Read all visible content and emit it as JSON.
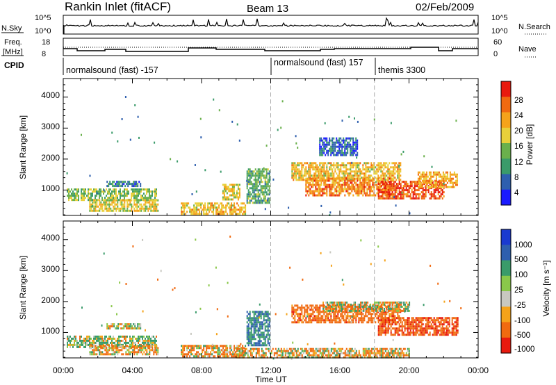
{
  "header": {
    "station": "Rankin Inlet (fitACF)",
    "beam": "Beam 13",
    "date": "02/Feb/2009"
  },
  "strips": {
    "nsky_label": "N.Sky",
    "nsky_ticks": [
      "10^5",
      "10^0"
    ],
    "nsearch_label": "N.Search",
    "nsearch_ticks": [
      "10^5",
      "10^0"
    ],
    "freq_label_1": "Freq.",
    "freq_label_2": "[MHz]",
    "freq_ticks": [
      "18",
      "8"
    ],
    "nave_label": "Nave",
    "nave_ticks": [
      "60",
      "0"
    ],
    "cpid_label": "CPID"
  },
  "cpid_segments": [
    {
      "start_hour": 0,
      "label": "normalsound (fast) -157"
    },
    {
      "start_hour": 12,
      "label": "normalsound (fast) 157"
    },
    {
      "start_hour": 18,
      "label": "themis 3300"
    }
  ],
  "colors": {
    "power": [
      "#1a1aff",
      "#2e5fae",
      "#3a9b6a",
      "#6ab04c",
      "#e8d03a",
      "#f5a31a",
      "#f06a10",
      "#e81a0e"
    ],
    "velocity": [
      "#e81a0e",
      "#f06a10",
      "#f5a31a",
      "#c8c8c0",
      "#8ac84a",
      "#3a9b6a",
      "#2e5fae",
      "#1a3ad0"
    ]
  },
  "chart_data": [
    {
      "type": "heatmap",
      "quantity": "power",
      "ylabel": "Slant Range [km]",
      "yticks": [
        "4000",
        "3000",
        "2000",
        "1000"
      ],
      "ylim": [
        180,
        4600
      ],
      "colorbar_label": "Power [dB]",
      "colorbar_ticks": [
        "28",
        "24",
        "20",
        "16",
        "12",
        "8",
        "4"
      ],
      "colorbar_range": [
        0,
        32
      ],
      "regions": [
        {
          "t": [
            0.2,
            5.4
          ],
          "r": [
            650,
            1050
          ],
          "value": 14
        },
        {
          "t": [
            1.5,
            5.5
          ],
          "r": [
            300,
            700
          ],
          "value": 18
        },
        {
          "t": [
            2.5,
            4.5
          ],
          "r": [
            1150,
            1300
          ],
          "value": 8
        },
        {
          "t": [
            6.8,
            10.5
          ],
          "r": [
            200,
            600
          ],
          "value": 20
        },
        {
          "t": [
            9.2,
            10.2
          ],
          "r": [
            700,
            1200
          ],
          "value": 18
        },
        {
          "t": [
            10.6,
            11.9
          ],
          "r": [
            600,
            1700
          ],
          "value": 12
        },
        {
          "t": [
            13.2,
            19.5
          ],
          "r": [
            1300,
            1900
          ],
          "value": 20
        },
        {
          "t": [
            14.0,
            19.0
          ],
          "r": [
            850,
            1400
          ],
          "value": 24
        },
        {
          "t": [
            18.2,
            22.0
          ],
          "r": [
            700,
            1300
          ],
          "value": 28
        },
        {
          "t": [
            20.5,
            22.8
          ],
          "r": [
            1100,
            1600
          ],
          "value": 22
        },
        {
          "t": [
            14.8,
            17.0
          ],
          "r": [
            2100,
            2700
          ],
          "value": 6
        }
      ]
    },
    {
      "type": "heatmap",
      "quantity": "velocity",
      "ylabel": "Slant Range [km]",
      "yticks": [
        "4000",
        "3000",
        "2000",
        "1000"
      ],
      "ylim": [
        180,
        4600
      ],
      "xlabel": "Time UT",
      "xticks": [
        "00:00",
        "04:00",
        "08:00",
        "12:00",
        "16:00",
        "20:00",
        "00:00"
      ],
      "xlim": [
        0,
        24
      ],
      "colorbar_label": "Velocity [m s⁻¹]",
      "colorbar_ticks": [
        "1000",
        "500",
        "100",
        "25",
        "-25",
        "-100",
        "-500",
        "-1000"
      ],
      "regions": [
        {
          "t": [
            0.2,
            5.4
          ],
          "r": [
            500,
            900
          ],
          "value": 100
        },
        {
          "t": [
            2.5,
            4.5
          ],
          "r": [
            1150,
            1300
          ],
          "value": 0
        },
        {
          "t": [
            1.5,
            5.5
          ],
          "r": [
            300,
            600
          ],
          "value": -100
        },
        {
          "t": [
            6.8,
            10.5
          ],
          "r": [
            200,
            600
          ],
          "value": -100
        },
        {
          "t": [
            10.6,
            11.9
          ],
          "r": [
            600,
            1700
          ],
          "value": 500
        },
        {
          "t": [
            13.2,
            19.5
          ],
          "r": [
            1300,
            1900
          ],
          "value": -300
        },
        {
          "t": [
            15.0,
            20.0
          ],
          "r": [
            1700,
            2000
          ],
          "value": 0
        },
        {
          "t": [
            18.2,
            22.8
          ],
          "r": [
            900,
            1500
          ],
          "value": -400
        },
        {
          "t": [
            10.0,
            20.0
          ],
          "r": [
            180,
            500
          ],
          "value": -60
        }
      ]
    }
  ]
}
